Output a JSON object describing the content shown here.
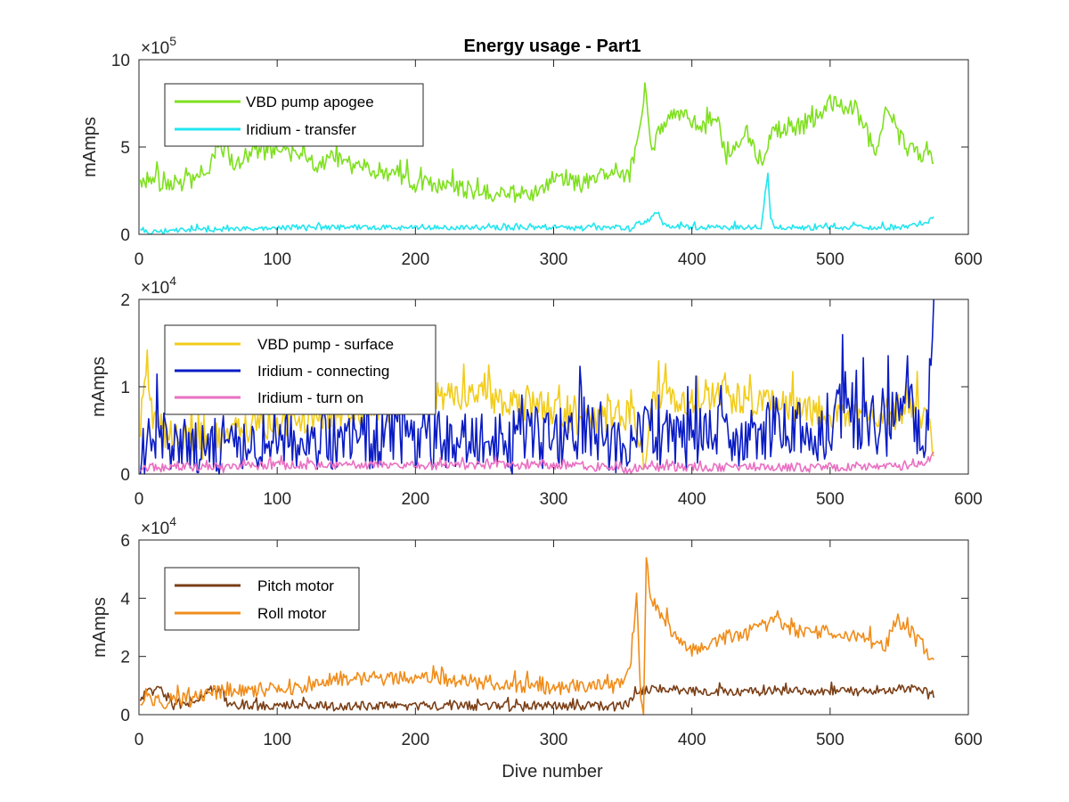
{
  "figure": {
    "title": "Energy usage - Part1",
    "xlabel": "Dive number"
  },
  "chart_data": [
    {
      "type": "line",
      "ylabel": "mAmps",
      "exponent": "5",
      "xlim": [
        0,
        600
      ],
      "ylim": [
        0,
        10
      ],
      "xticks": [
        0,
        100,
        200,
        300,
        400,
        500,
        600
      ],
      "yticks": [
        0,
        5,
        10
      ],
      "legend_position": "top-left",
      "grid": false,
      "series": [
        {
          "name": "VBD pump apogee",
          "color": "#7fe01f",
          "noise": 0.5,
          "x": [
            1,
            10,
            20,
            40,
            50,
            55,
            60,
            70,
            80,
            90,
            100,
            110,
            120,
            130,
            140,
            150,
            160,
            180,
            190,
            200,
            220,
            250,
            270,
            290,
            300,
            320,
            340,
            355,
            362,
            366,
            370,
            375,
            380,
            390,
            400,
            410,
            418,
            425,
            440,
            450,
            460,
            480,
            490,
            500,
            510,
            520,
            530,
            535,
            540,
            545,
            555,
            565,
            575
          ],
          "y": [
            3.0,
            3.4,
            2.8,
            3.1,
            3.8,
            4.8,
            5.0,
            4.0,
            4.6,
            4.8,
            4.9,
            4.6,
            4.4,
            4.0,
            4.6,
            4.0,
            3.9,
            3.5,
            3.6,
            2.9,
            2.7,
            2.4,
            2.3,
            2.4,
            3.0,
            2.9,
            3.5,
            3.3,
            6.0,
            8.5,
            5.0,
            5.5,
            6.5,
            6.8,
            6.6,
            6.0,
            6.8,
            4.2,
            5.8,
            4.2,
            6.0,
            6.2,
            6.5,
            7.5,
            7.3,
            7.3,
            5.0,
            4.7,
            7.0,
            6.2,
            5.0,
            4.6,
            4.2
          ]
        },
        {
          "name": "Iridium - transfer",
          "color": "#21e6ef",
          "noise": 0.15,
          "x": [
            1,
            20,
            60,
            100,
            150,
            200,
            250,
            300,
            350,
            355,
            360,
            370,
            375,
            380,
            400,
            450,
            455,
            457,
            460,
            500,
            550,
            570,
            575
          ],
          "y": [
            0.1,
            0.2,
            0.3,
            0.4,
            0.4,
            0.4,
            0.4,
            0.4,
            0.4,
            0.3,
            0.6,
            0.8,
            1.4,
            0.5,
            0.4,
            0.4,
            3.6,
            0.8,
            0.4,
            0.4,
            0.4,
            0.7,
            1.0
          ]
        }
      ]
    },
    {
      "type": "line",
      "ylabel": "mAmps",
      "exponent": "4",
      "xlim": [
        0,
        600
      ],
      "ylim": [
        0,
        2
      ],
      "xticks": [
        0,
        100,
        200,
        300,
        400,
        500,
        600
      ],
      "yticks": [
        0,
        1,
        2
      ],
      "legend_position": "top-left",
      "grid": false,
      "series": [
        {
          "name": "VBD pump - surface",
          "color": "#f2cc1a",
          "noise": 0.18,
          "x": [
            1,
            5,
            10,
            20,
            50,
            100,
            150,
            180,
            200,
            250,
            300,
            320,
            350,
            360,
            366,
            370,
            380,
            400,
            420,
            440,
            460,
            480,
            500,
            520,
            540,
            560,
            570,
            575
          ],
          "y": [
            0.6,
            1.1,
            0.6,
            0.5,
            0.4,
            0.6,
            0.7,
            0.8,
            0.9,
            0.9,
            0.7,
            0.6,
            0.7,
            0.6,
            0.1,
            0.9,
            0.95,
            0.8,
            0.95,
            0.85,
            0.8,
            0.75,
            0.7,
            0.7,
            0.6,
            0.8,
            0.6,
            0.3
          ]
        },
        {
          "name": "Iridium - connecting",
          "color": "#0a1cc4",
          "noise": 0.35,
          "x": [
            1,
            10,
            20,
            50,
            100,
            150,
            200,
            250,
            300,
            320,
            350,
            360,
            370,
            380,
            400,
            420,
            440,
            460,
            480,
            500,
            510,
            520,
            530,
            540,
            550,
            560,
            570,
            575
          ],
          "y": [
            0.1,
            0.5,
            0.3,
            0.3,
            0.4,
            0.4,
            0.4,
            0.4,
            0.4,
            0.5,
            0.3,
            0.4,
            0.5,
            0.4,
            0.45,
            0.5,
            0.45,
            0.55,
            0.5,
            0.4,
            0.9,
            0.6,
            0.6,
            0.5,
            0.9,
            0.6,
            0.5,
            1.9
          ]
        },
        {
          "name": "Iridium - turn on",
          "color": "#ea6fc2",
          "noise": 0.05,
          "x": [
            1,
            50,
            100,
            150,
            200,
            250,
            300,
            350,
            360,
            370,
            400,
            450,
            500,
            550,
            570,
            575
          ],
          "y": [
            0.08,
            0.08,
            0.1,
            0.1,
            0.1,
            0.1,
            0.1,
            0.06,
            0.05,
            0.08,
            0.08,
            0.08,
            0.08,
            0.08,
            0.15,
            0.25
          ]
        }
      ]
    },
    {
      "type": "line",
      "ylabel": "mAmps",
      "exponent": "4",
      "xlim": [
        0,
        600
      ],
      "ylim": [
        0,
        6
      ],
      "xticks": [
        0,
        100,
        200,
        300,
        400,
        500,
        600
      ],
      "yticks": [
        0,
        2,
        4,
        6
      ],
      "legend_position": "top-left",
      "grid": false,
      "series": [
        {
          "name": "Pitch motor",
          "color": "#7a3f17",
          "noise": 0.15,
          "x": [
            1,
            5,
            10,
            15,
            20,
            25,
            30,
            40,
            50,
            55,
            60,
            65,
            100,
            150,
            200,
            250,
            300,
            350,
            355,
            360,
            380,
            400,
            450,
            500,
            550,
            560,
            575
          ],
          "y": [
            0.5,
            0.8,
            0.8,
            0.9,
            0.6,
            0.3,
            0.3,
            0.3,
            0.8,
            0.9,
            0.8,
            0.3,
            0.3,
            0.3,
            0.3,
            0.3,
            0.3,
            0.3,
            0.4,
            0.8,
            0.9,
            0.8,
            0.8,
            0.8,
            0.8,
            0.9,
            0.7
          ]
        },
        {
          "name": "Roll motor",
          "color": "#f08c1a",
          "noise": 0.25,
          "x": [
            1,
            5,
            10,
            20,
            30,
            50,
            60,
            100,
            130,
            140,
            150,
            200,
            250,
            300,
            350,
            355,
            360,
            363,
            365,
            367,
            370,
            380,
            400,
            420,
            440,
            460,
            480,
            500,
            520,
            540,
            550,
            560,
            570,
            575
          ],
          "y": [
            0.4,
            0.7,
            0.5,
            0.4,
            0.5,
            0.7,
            0.8,
            0.9,
            1.0,
            1.3,
            1.2,
            1.3,
            1.1,
            0.9,
            1.0,
            1.5,
            4.0,
            0.5,
            0.0,
            5.6,
            4.0,
            3.2,
            2.2,
            2.6,
            2.8,
            3.2,
            2.8,
            2.8,
            2.6,
            2.4,
            3.2,
            2.8,
            2.2,
            1.6
          ]
        }
      ]
    }
  ]
}
